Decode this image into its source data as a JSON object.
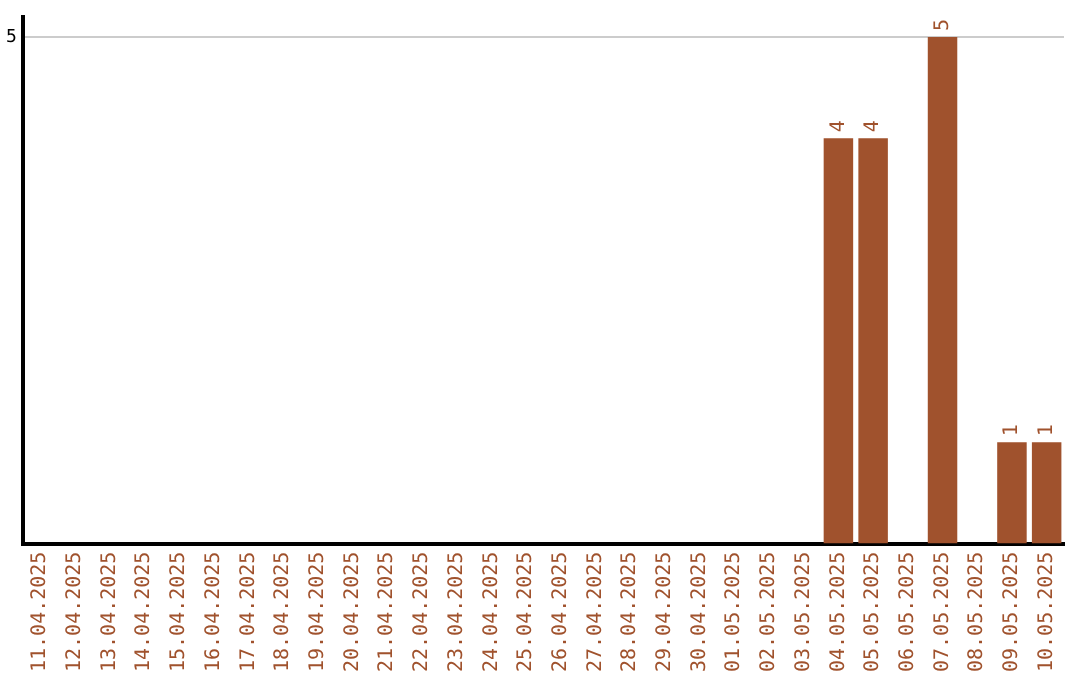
{
  "chart_data": {
    "type": "bar",
    "categories": [
      "11.04.2025",
      "12.04.2025",
      "13.04.2025",
      "14.04.2025",
      "15.04.2025",
      "16.04.2025",
      "17.04.2025",
      "18.04.2025",
      "19.04.2025",
      "20.04.2025",
      "21.04.2025",
      "22.04.2025",
      "23.04.2025",
      "24.04.2025",
      "25.04.2025",
      "26.04.2025",
      "27.04.2025",
      "28.04.2025",
      "29.04.2025",
      "30.04.2025",
      "01.05.2025",
      "02.05.2025",
      "03.05.2025",
      "04.05.2025",
      "05.05.2025",
      "06.05.2025",
      "07.05.2025",
      "08.05.2025",
      "09.05.2025",
      "10.05.2025"
    ],
    "values": [
      null,
      null,
      null,
      null,
      null,
      null,
      null,
      null,
      null,
      null,
      null,
      null,
      null,
      null,
      null,
      null,
      null,
      null,
      null,
      null,
      null,
      null,
      null,
      4,
      4,
      null,
      5,
      null,
      1,
      1
    ],
    "data_labels": true,
    "color": "#a0522d",
    "ylim": [
      0,
      5.2
    ],
    "yticks": [
      5
    ],
    "grid": "y",
    "legend": false
  }
}
